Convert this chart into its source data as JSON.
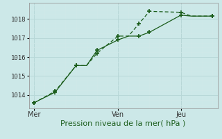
{
  "xlabel": "Pression niveau de la mer( hPa )",
  "background_color": "#cce8e8",
  "grid_color": "#b8d8d8",
  "grid_color_minor": "#d0e8e8",
  "line_color": "#1a5c1a",
  "ylim": [
    1013.3,
    1018.85
  ],
  "yticks": [
    1014,
    1015,
    1016,
    1017,
    1018
  ],
  "xtick_labels": [
    "Mer",
    "Ven",
    "Jeu"
  ],
  "xtick_positions": [
    0,
    8,
    14
  ],
  "xlim": [
    -0.5,
    17.5
  ],
  "vlines_x": [
    8,
    14
  ],
  "series1_x": [
    0,
    2,
    4,
    5,
    6,
    8,
    9,
    10,
    11,
    14,
    15,
    17
  ],
  "series1_y": [
    1013.6,
    1014.2,
    1015.55,
    1015.55,
    1016.2,
    1017.1,
    1017.1,
    1017.75,
    1018.4,
    1018.35,
    1018.15,
    1018.15
  ],
  "series2_x": [
    0,
    2,
    4,
    5,
    6,
    8,
    9,
    10,
    11,
    14,
    15,
    17
  ],
  "series2_y": [
    1013.6,
    1014.15,
    1015.55,
    1015.55,
    1016.35,
    1016.9,
    1017.1,
    1017.1,
    1017.3,
    1018.2,
    1018.15,
    1018.15
  ],
  "markers1_x": [
    0,
    2,
    4,
    6,
    8,
    10,
    11,
    14,
    17
  ],
  "markers1_y": [
    1013.6,
    1014.2,
    1015.55,
    1016.2,
    1017.1,
    1017.75,
    1018.4,
    1018.35,
    1018.15
  ],
  "markers2_x": [
    0,
    2,
    4,
    6,
    8,
    10,
    11,
    14,
    17
  ],
  "markers2_y": [
    1013.6,
    1014.15,
    1015.55,
    1016.35,
    1016.9,
    1017.1,
    1017.3,
    1018.2,
    1018.15
  ]
}
